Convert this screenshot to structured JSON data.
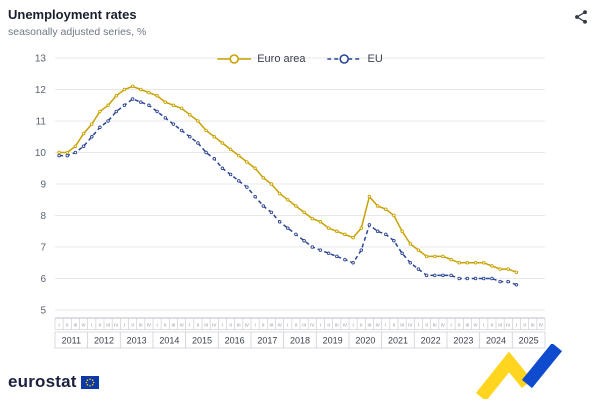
{
  "header": {
    "title": "Unemployment rates",
    "subtitle": "seasonally adjusted series, %"
  },
  "footer": {
    "brand": "eurostat"
  },
  "chart_data": {
    "type": "line",
    "title": "Unemployment rates",
    "subtitle": "seasonally adjusted series, %",
    "ylabel": "%",
    "ylim": [
      5,
      13
    ],
    "yticks": [
      5,
      6,
      7,
      8,
      9,
      10,
      11,
      12,
      13
    ],
    "grid": "horizontal",
    "legend_position": "top-center",
    "x_unit": "quarter",
    "start": "2011-Q1",
    "end": "2025-Q1",
    "years": [
      2011,
      2012,
      2013,
      2014,
      2015,
      2016,
      2017,
      2018,
      2019,
      2020,
      2021,
      2022,
      2023,
      2024,
      2025
    ],
    "quarter_labels": [
      "I",
      "II",
      "III",
      "IV"
    ],
    "series": [
      {
        "name": "Euro area",
        "color": "#C9A100",
        "line_style": "solid",
        "values": [
          10.0,
          10.0,
          10.2,
          10.6,
          10.9,
          11.3,
          11.5,
          11.8,
          12.0,
          12.1,
          12.0,
          11.9,
          11.8,
          11.6,
          11.5,
          11.4,
          11.2,
          11.0,
          10.7,
          10.5,
          10.3,
          10.1,
          9.9,
          9.7,
          9.5,
          9.2,
          9.0,
          8.7,
          8.5,
          8.3,
          8.1,
          7.9,
          7.8,
          7.6,
          7.5,
          7.4,
          7.3,
          7.6,
          8.6,
          8.3,
          8.2,
          8.0,
          7.5,
          7.1,
          6.9,
          6.7,
          6.7,
          6.7,
          6.6,
          6.5,
          6.5,
          6.5,
          6.5,
          6.4,
          6.3,
          6.3,
          6.2
        ]
      },
      {
        "name": "EU",
        "color": "#2B4494",
        "line_style": "dashed",
        "values": [
          9.9,
          9.9,
          10.0,
          10.2,
          10.5,
          10.8,
          11.0,
          11.3,
          11.5,
          11.7,
          11.6,
          11.5,
          11.3,
          11.1,
          10.9,
          10.7,
          10.5,
          10.3,
          10.0,
          9.8,
          9.5,
          9.3,
          9.1,
          8.9,
          8.6,
          8.3,
          8.1,
          7.8,
          7.6,
          7.4,
          7.2,
          7.0,
          6.9,
          6.8,
          6.7,
          6.6,
          6.5,
          6.9,
          7.7,
          7.5,
          7.4,
          7.2,
          6.8,
          6.5,
          6.3,
          6.1,
          6.1,
          6.1,
          6.1,
          6.0,
          6.0,
          6.0,
          6.0,
          6.0,
          5.9,
          5.9,
          5.8
        ]
      }
    ]
  }
}
